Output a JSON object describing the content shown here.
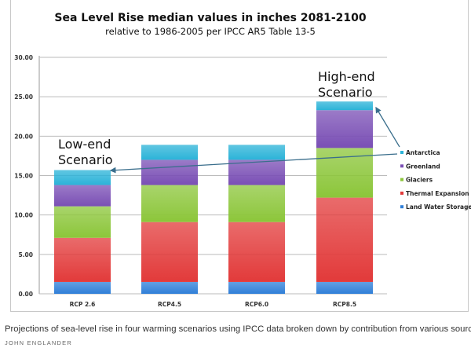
{
  "chart_data": {
    "type": "bar",
    "stacked": true,
    "title": "Sea Level Rise median values in inches 2081-2100",
    "subtitle": "relative to 1986-2005 per IPCC AR5 Table 13-5",
    "xlabel": "",
    "ylabel": "",
    "ylim": [
      0,
      30
    ],
    "yticks": [
      "0.00",
      "5.00",
      "10.00",
      "15.00",
      "20.00",
      "25.00",
      "30.00"
    ],
    "grid": true,
    "legend_position": "right",
    "categories": [
      "RCP 2.6",
      "RCP4.5",
      "RCP6.0",
      "RCP8.5"
    ],
    "series": [
      {
        "name": "Land Water Storage",
        "color": "#2f7fd8",
        "values": [
          1.5,
          1.5,
          1.5,
          1.5
        ]
      },
      {
        "name": "Thermal Expansion",
        "color": "#e23a3a",
        "values": [
          5.6,
          7.6,
          7.6,
          10.7
        ]
      },
      {
        "name": "Glaciers",
        "color": "#8cc63a",
        "values": [
          4.0,
          4.7,
          4.7,
          6.3
        ]
      },
      {
        "name": "Greenland",
        "color": "#7a4fb5",
        "values": [
          2.7,
          3.2,
          3.2,
          4.8
        ]
      },
      {
        "name": "Antarctica",
        "color": "#2bb3d8",
        "values": [
          1.9,
          1.9,
          1.9,
          1.1
        ]
      }
    ],
    "annotations": [
      {
        "lines": [
          "Low-end",
          "Scenario"
        ],
        "target": "RCP 2.6"
      },
      {
        "lines": [
          "High-end",
          "Scenario"
        ],
        "target": "RCP8.5"
      }
    ]
  },
  "caption": "Projections of sea-level rise in four warming scenarios using IPCC data broken down by contribution from various sources.",
  "credit": "JOHN ENGLANDER"
}
